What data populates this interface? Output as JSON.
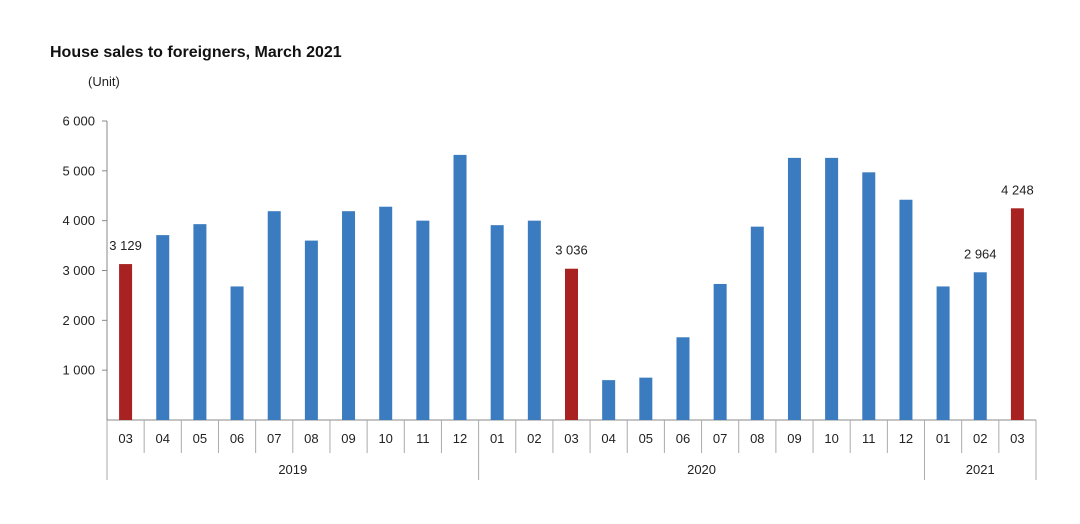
{
  "chart_data": {
    "type": "bar",
    "title": "House sales to foreigners, March 2021",
    "unit_label": "(Unit)",
    "categories": [
      "03",
      "04",
      "05",
      "06",
      "07",
      "08",
      "09",
      "10",
      "11",
      "12",
      "01",
      "02",
      "03",
      "04",
      "05",
      "06",
      "07",
      "08",
      "09",
      "10",
      "11",
      "12",
      "01",
      "02",
      "03"
    ],
    "groups": [
      {
        "label": "2019",
        "start": 0,
        "count": 10
      },
      {
        "label": "2020",
        "start": 10,
        "count": 12
      },
      {
        "label": "2021",
        "start": 22,
        "count": 3
      }
    ],
    "values": [
      3129,
      3710,
      3930,
      2680,
      4190,
      3600,
      4190,
      4280,
      4000,
      5320,
      3910,
      4000,
      3036,
      800,
      850,
      1660,
      2730,
      3880,
      5260,
      5260,
      4970,
      4420,
      2680,
      2964,
      4248
    ],
    "highlight": [
      true,
      false,
      false,
      false,
      false,
      false,
      false,
      false,
      false,
      false,
      false,
      false,
      true,
      false,
      false,
      false,
      false,
      false,
      false,
      false,
      false,
      false,
      false,
      false,
      true
    ],
    "data_labels": [
      {
        "index": 0,
        "text": "3 129"
      },
      {
        "index": 12,
        "text": "3 036"
      },
      {
        "index": 23,
        "text": "2 964"
      },
      {
        "index": 24,
        "text": "4 248"
      }
    ],
    "ylim": [
      0,
      6000
    ],
    "yticks": [
      {
        "value": 1000,
        "label": "1 000"
      },
      {
        "value": 2000,
        "label": "2 000"
      },
      {
        "value": 3000,
        "label": "3 000"
      },
      {
        "value": 4000,
        "label": "4 000"
      },
      {
        "value": 5000,
        "label": "5 000"
      },
      {
        "value": 6000,
        "label": "6 000"
      }
    ],
    "grid": false,
    "colors": {
      "bar": "#3b7bbf",
      "highlight": "#a92222",
      "axis": "#888888"
    }
  }
}
